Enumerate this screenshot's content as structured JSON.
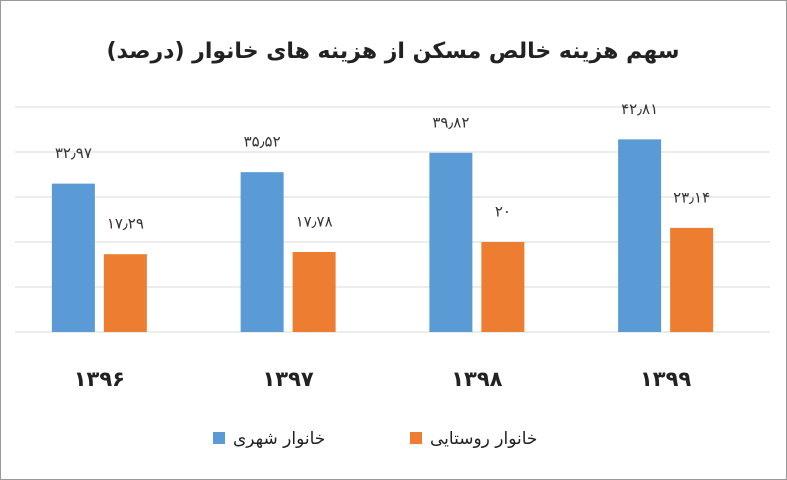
{
  "chart_data": {
    "type": "bar",
    "title": "سهم هزینه خالص مسکن از هزینه های خانوار (درصد)",
    "categories": [
      "۱۳۹۶",
      "۱۳۹۷",
      "۱۳۹۸",
      "۱۳۹۹"
    ],
    "series": [
      {
        "name": "خانوار شهری",
        "color": "#5b9bd5",
        "values": [
          32.97,
          35.52,
          39.82,
          42.81
        ],
        "value_labels": [
          "۳۲٫۹۷",
          "۳۵٫۵۲",
          "۳۹٫۸۲",
          "۴۲٫۸۱"
        ]
      },
      {
        "name": "خانوار روستایی",
        "color": "#ed7d31",
        "values": [
          17.29,
          17.78,
          20,
          23.14
        ],
        "value_labels": [
          "۱۷٫۲۹",
          "۱۷٫۷۸",
          "۲۰",
          "۲۳٫۱۴"
        ]
      }
    ],
    "ylim": [
      0,
      50
    ],
    "yticks": [
      0,
      10,
      20,
      30,
      40,
      50
    ],
    "grid": true
  }
}
